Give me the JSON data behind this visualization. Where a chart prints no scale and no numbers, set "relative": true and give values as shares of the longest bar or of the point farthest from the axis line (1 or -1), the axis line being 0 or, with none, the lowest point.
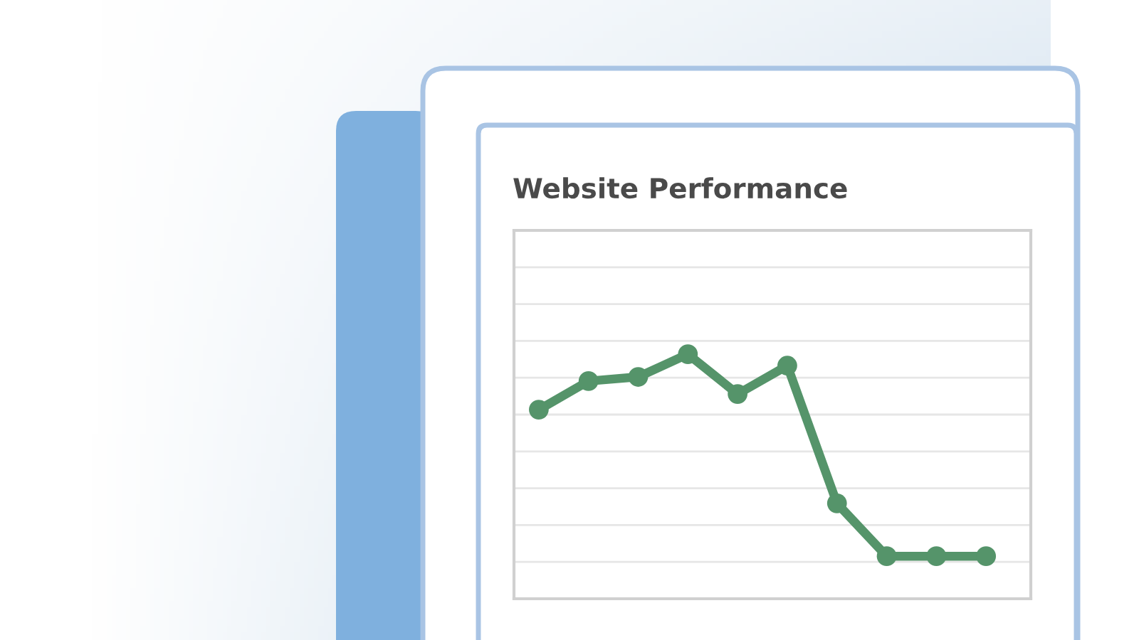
{
  "chart_data": {
    "type": "line",
    "title": "Website Performance",
    "relative": true,
    "categories": [
      null,
      null,
      null,
      null,
      null,
      null,
      null,
      null,
      null,
      null
    ],
    "series": [
      {
        "color": "#55946a",
        "values": [
          0.773,
          0.89,
          0.907,
          1,
          0.837,
          0.953,
          0.39,
          0.174,
          0.174,
          0.174
        ]
      }
    ],
    "marker": "circle",
    "line_style": "solid",
    "grid": "y"
  }
}
